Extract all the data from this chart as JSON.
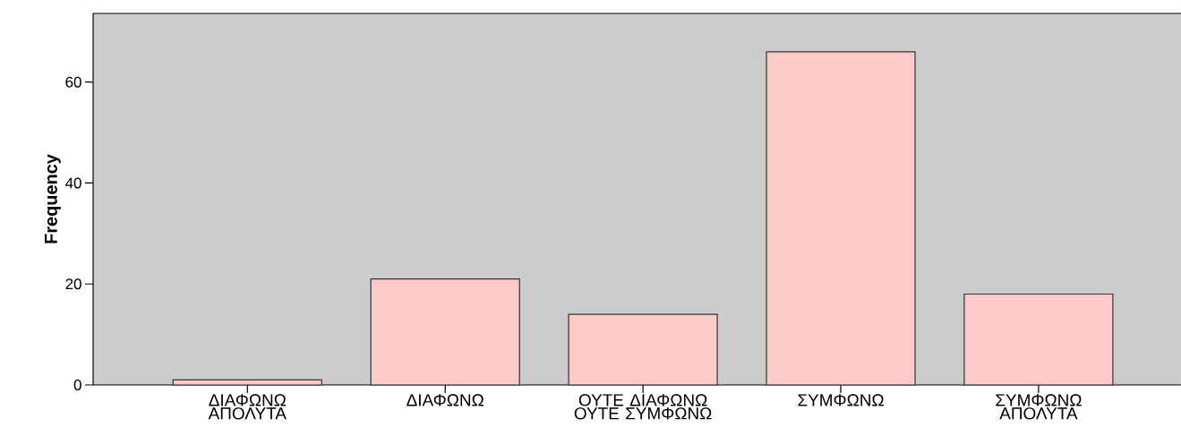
{
  "chart_data": {
    "type": "bar",
    "ylabel": "Frequency",
    "categories": [
      "ΔΙΑΦΩΝΩ ΑΠΟΛΥΤΑ",
      "ΔΙΑΦΩΝΩ",
      "ΟΥΤΕ ΔΙΑΦΩΝΩ ΟΥΤΕ ΣΥΜΦΩΝΩ",
      "ΣΥΜΦΩΝΩ",
      "ΣΥΜΦΩΝΩ ΑΠΟΛΥΤΑ"
    ],
    "values": [
      1,
      21,
      14,
      66,
      18
    ],
    "color": "#fdcaca",
    "ylim": [
      0,
      73.6
    ],
    "yticks": [
      0,
      20,
      40,
      60
    ],
    "grid": false
  }
}
